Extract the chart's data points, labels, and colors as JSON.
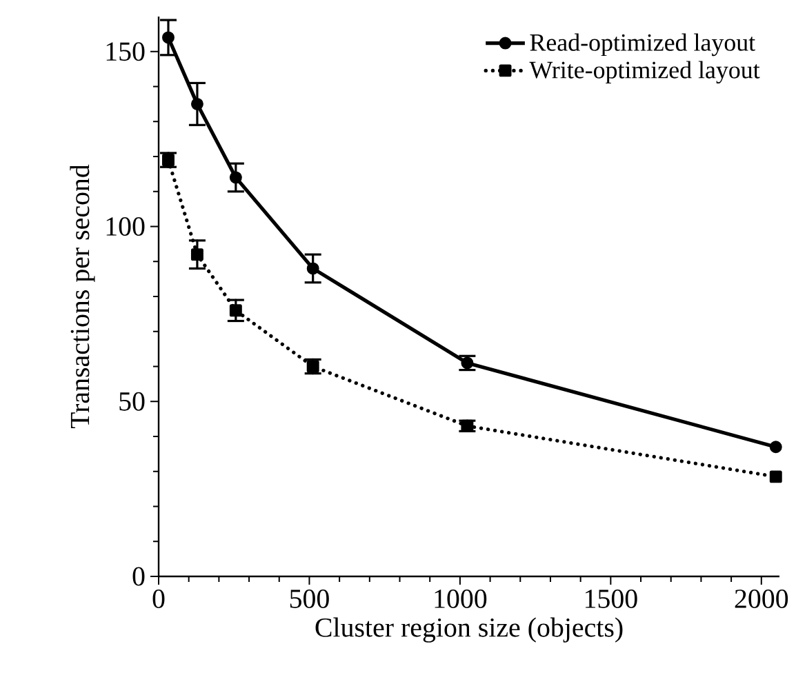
{
  "chart_data": {
    "type": "line",
    "xlabel": "Cluster region size (objects)",
    "ylabel": "Transactions per second",
    "x": [
      32,
      128,
      256,
      512,
      1024,
      2048
    ],
    "series": [
      {
        "name": "Read-optimized layout",
        "color": "#000000",
        "marker": "circle",
        "line_style": "solid",
        "values": [
          154,
          135,
          114,
          88,
          61,
          37
        ],
        "errors": [
          5,
          6,
          4,
          4,
          2,
          null
        ]
      },
      {
        "name": "Write-optimized layout",
        "color": "#000000",
        "marker": "square",
        "line_style": "dotted",
        "values": [
          119,
          92,
          76,
          60,
          43,
          28.5
        ],
        "errors": [
          2,
          4,
          3,
          2,
          1.5,
          null
        ]
      }
    ],
    "xlim": [
      0,
      2060
    ],
    "ylim": [
      0,
      160
    ],
    "xticks": [
      0,
      500,
      1000,
      1500,
      2000
    ],
    "yticks": [
      0,
      50,
      100,
      150
    ],
    "grid": false,
    "legend": "top right"
  }
}
